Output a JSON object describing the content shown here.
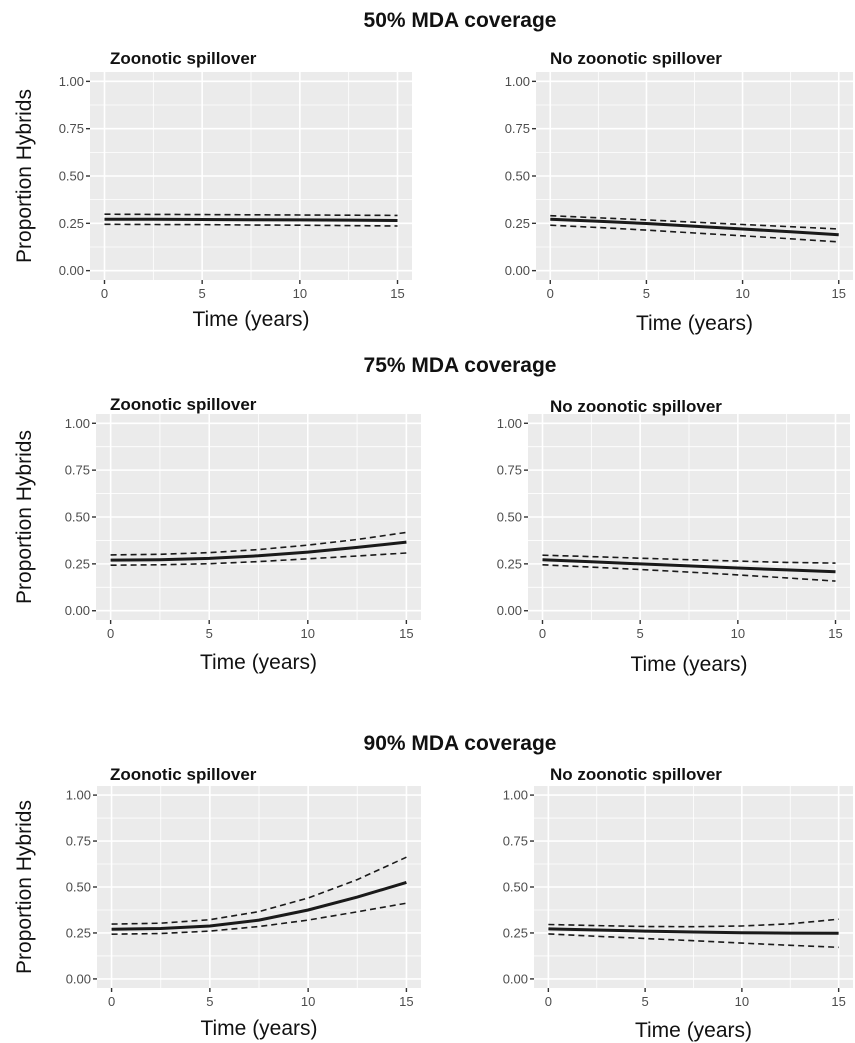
{
  "chart_data": [
    {
      "section_title": "50% MDA coverage",
      "panels": [
        {
          "type": "line",
          "title": "Zoonotic spillover",
          "xlabel": "Time (years)",
          "ylabel": "Proportion Hybrids",
          "xlim": [
            0,
            15
          ],
          "ylim": [
            0,
            1
          ],
          "x_ticks": [
            "0",
            "5",
            "10",
            "15"
          ],
          "y_ticks": [
            "0.00",
            "0.25",
            "0.50",
            "0.75",
            "1.00"
          ],
          "grid": true,
          "x": [
            0,
            2.5,
            5,
            7.5,
            10,
            12.5,
            15
          ],
          "series": [
            {
              "style": "solid",
              "values": [
                0.272,
                0.271,
                0.27,
                0.269,
                0.268,
                0.267,
                0.265
              ]
            },
            {
              "style": "dashed",
              "values": [
                0.298,
                0.297,
                0.296,
                0.295,
                0.294,
                0.293,
                0.292
              ]
            },
            {
              "style": "dashed",
              "values": [
                0.245,
                0.244,
                0.243,
                0.241,
                0.24,
                0.238,
                0.236
              ]
            }
          ]
        },
        {
          "type": "line",
          "title": "No zoonotic spillover",
          "xlabel": "Time (years)",
          "ylabel": "",
          "xlim": [
            0,
            15
          ],
          "ylim": [
            0,
            1
          ],
          "x_ticks": [
            "0",
            "5",
            "10",
            "15"
          ],
          "y_ticks": [
            "0.00",
            "0.25",
            "0.50",
            "0.75",
            "1.00"
          ],
          "grid": true,
          "x": [
            0,
            2.5,
            5,
            7.5,
            10,
            12.5,
            15
          ],
          "series": [
            {
              "style": "solid",
              "values": [
                0.272,
                0.261,
                0.249,
                0.235,
                0.22,
                0.205,
                0.19
              ]
            },
            {
              "style": "dashed",
              "values": [
                0.29,
                0.279,
                0.268,
                0.256,
                0.244,
                0.232,
                0.22
              ]
            },
            {
              "style": "dashed",
              "values": [
                0.24,
                0.228,
                0.214,
                0.199,
                0.184,
                0.168,
                0.152
              ]
            }
          ]
        }
      ]
    },
    {
      "section_title": "75% MDA coverage",
      "panels": [
        {
          "type": "line",
          "title": "Zoonotic spillover",
          "xlabel": "Time (years)",
          "ylabel": "Proportion Hybrids",
          "xlim": [
            0,
            15
          ],
          "ylim": [
            0,
            1
          ],
          "x_ticks": [
            "0",
            "5",
            "10",
            "15"
          ],
          "y_ticks": [
            "0.00",
            "0.25",
            "0.50",
            "0.75",
            "1.00"
          ],
          "grid": true,
          "x": [
            0,
            2.5,
            5,
            7.5,
            10,
            12.5,
            15
          ],
          "series": [
            {
              "style": "solid",
              "values": [
                0.27,
                0.272,
                0.279,
                0.293,
                0.313,
                0.338,
                0.366
              ]
            },
            {
              "style": "dashed",
              "values": [
                0.298,
                0.301,
                0.31,
                0.326,
                0.35,
                0.38,
                0.418
              ]
            },
            {
              "style": "dashed",
              "values": [
                0.243,
                0.245,
                0.251,
                0.262,
                0.277,
                0.292,
                0.308
              ]
            }
          ]
        },
        {
          "type": "line",
          "title": "No zoonotic spillover",
          "xlabel": "Time (years)",
          "ylabel": "",
          "xlim": [
            0,
            15
          ],
          "ylim": [
            0,
            1
          ],
          "x_ticks": [
            "0",
            "5",
            "10",
            "15"
          ],
          "y_ticks": [
            "0.00",
            "0.25",
            "0.50",
            "0.75",
            "1.00"
          ],
          "grid": true,
          "x": [
            0,
            2.5,
            5,
            7.5,
            10,
            12.5,
            15
          ],
          "series": [
            {
              "style": "solid",
              "values": [
                0.272,
                0.261,
                0.25,
                0.239,
                0.228,
                0.218,
                0.208
              ]
            },
            {
              "style": "dashed",
              "values": [
                0.296,
                0.289,
                0.28,
                0.272,
                0.265,
                0.258,
                0.254
              ]
            },
            {
              "style": "dashed",
              "values": [
                0.245,
                0.233,
                0.22,
                0.206,
                0.191,
                0.175,
                0.158
              ]
            }
          ]
        }
      ]
    },
    {
      "section_title": "90% MDA coverage",
      "panels": [
        {
          "type": "line",
          "title": "Zoonotic spillover",
          "xlabel": "Time (years)",
          "ylabel": "Proportion Hybrids",
          "xlim": [
            0,
            15
          ],
          "ylim": [
            0,
            1
          ],
          "x_ticks": [
            "0",
            "5",
            "10",
            "15"
          ],
          "y_ticks": [
            "0.00",
            "0.25",
            "0.50",
            "0.75",
            "1.00"
          ],
          "grid": true,
          "x": [
            0,
            2.5,
            5,
            7.5,
            10,
            12.5,
            15
          ],
          "series": [
            {
              "style": "solid",
              "values": [
                0.27,
                0.274,
                0.288,
                0.32,
                0.375,
                0.445,
                0.525
              ]
            },
            {
              "style": "dashed",
              "values": [
                0.298,
                0.303,
                0.322,
                0.366,
                0.44,
                0.54,
                0.662
              ]
            },
            {
              "style": "dashed",
              "values": [
                0.243,
                0.247,
                0.26,
                0.285,
                0.32,
                0.365,
                0.412
              ]
            }
          ]
        },
        {
          "type": "line",
          "title": "No zoonotic spillover",
          "xlabel": "Time (years)",
          "ylabel": "",
          "xlim": [
            0,
            15
          ],
          "ylim": [
            0,
            1
          ],
          "x_ticks": [
            "0",
            "5",
            "10",
            "15"
          ],
          "y_ticks": [
            "0.00",
            "0.25",
            "0.50",
            "0.75",
            "1.00"
          ],
          "grid": true,
          "x": [
            0,
            2.5,
            5,
            7.5,
            10,
            12.5,
            15
          ],
          "series": [
            {
              "style": "solid",
              "values": [
                0.272,
                0.266,
                0.26,
                0.255,
                0.251,
                0.249,
                0.248
              ]
            },
            {
              "style": "dashed",
              "values": [
                0.296,
                0.29,
                0.285,
                0.284,
                0.288,
                0.3,
                0.325
              ]
            },
            {
              "style": "dashed",
              "values": [
                0.245,
                0.232,
                0.22,
                0.208,
                0.195,
                0.183,
                0.172
              ]
            }
          ]
        }
      ]
    }
  ]
}
